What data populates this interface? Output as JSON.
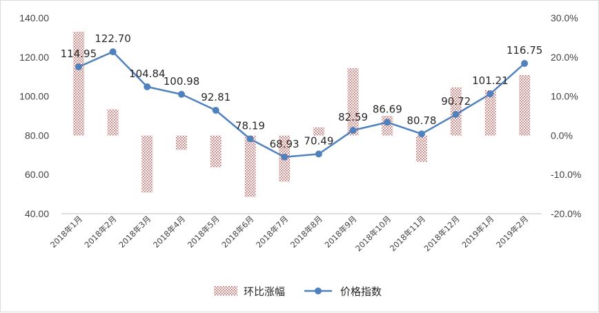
{
  "chart_data": {
    "type": "bar",
    "categories": [
      "2018年1月",
      "2018年2月",
      "2018年3月",
      "2018年4月",
      "2018年5月",
      "2018年6月",
      "2018年7月",
      "2018年8月",
      "2018年9月",
      "2018年10月",
      "2018年11月",
      "2018年12月",
      "2019年1月",
      "2019年2月"
    ],
    "series": [
      {
        "name": "环比涨幅",
        "type": "bar",
        "axis": "right",
        "values": [
          26.5,
          6.7,
          -14.6,
          -3.7,
          -8.1,
          -15.7,
          -11.8,
          2.1,
          17.2,
          5.0,
          -6.8,
          12.3,
          11.6,
          15.4
        ]
      },
      {
        "name": "价格指数",
        "type": "line",
        "axis": "left",
        "values": [
          114.95,
          122.7,
          104.84,
          100.98,
          92.81,
          78.19,
          68.93,
          70.49,
          82.59,
          86.69,
          80.78,
          90.72,
          101.21,
          116.75
        ],
        "labels": [
          "114.95",
          "122.70",
          "104.84",
          "100.98",
          "92.81",
          "78.19",
          "68.93",
          "70.49",
          "82.59",
          "86.69",
          "80.78",
          "90.72",
          "101.21",
          "116.75"
        ]
      }
    ],
    "y_left": {
      "min": 40,
      "max": 140,
      "step": 20,
      "ticks": [
        "40.00",
        "60.00",
        "80.00",
        "100.00",
        "120.00",
        "140.00"
      ]
    },
    "y_right": {
      "min": -20,
      "max": 30,
      "step": 10,
      "ticks": [
        "-20.0%",
        "-10.0%",
        "0.0%",
        "10.0%",
        "20.0%",
        "30.0%"
      ]
    },
    "legend": {
      "position": "bottom",
      "items": [
        "环比涨幅",
        "价格指数"
      ]
    },
    "colors": {
      "bar": "#c0504d",
      "line": "#4f81bd",
      "marker": "#4f81bd"
    },
    "grid": false
  }
}
